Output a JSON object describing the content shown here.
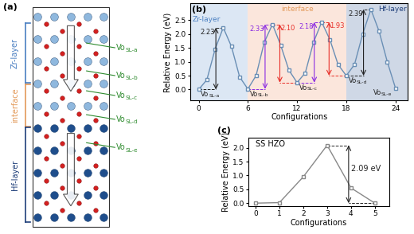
{
  "diagram": {
    "panel_label": "(a)",
    "layers": [
      {
        "label": "Zr-layer",
        "color": "#4a7fc1"
      },
      {
        "label": "interface",
        "color": "#e39a5a"
      },
      {
        "label": "Hf-layer",
        "color": "#1f3f7a"
      }
    ],
    "sites": [
      {
        "main": "Vo",
        "sub": "SL-a"
      },
      {
        "main": "Vo",
        "sub": "SL-b"
      },
      {
        "main": "Vo",
        "sub": "SL-c"
      },
      {
        "main": "Vo",
        "sub": "SL-d"
      },
      {
        "main": "Vo",
        "sub": "SL-e"
      }
    ],
    "site_color": "#2e8b2e"
  },
  "chart_data": [
    {
      "type": "line",
      "title": "(b)",
      "x": [
        0,
        1,
        2,
        3,
        4,
        5,
        6,
        7,
        8,
        9,
        10,
        11,
        12,
        13,
        14,
        15,
        16,
        17,
        18,
        19,
        20,
        21,
        22,
        23,
        24
      ],
      "values": [
        0.0,
        0.35,
        1.45,
        2.23,
        1.55,
        0.45,
        0.02,
        0.5,
        1.7,
        2.35,
        1.6,
        0.7,
        0.25,
        0.6,
        1.7,
        2.43,
        1.8,
        0.9,
        0.5,
        0.9,
        2.0,
        2.89,
        2.1,
        1.0,
        0.05
      ],
      "color": "#6a8fb5",
      "marker": "s",
      "line_style": "solid",
      "xlabel": "Configurations",
      "ylabel": "Relative Energy (eV)",
      "xlim": [
        -1,
        25.5
      ],
      "ylim": [
        -0.4,
        3.1
      ],
      "xticks": [
        0,
        6,
        12,
        18,
        24
      ],
      "yticks": [
        {
          "value": 0,
          "label": "0.0"
        },
        {
          "value": 0.5,
          "label": "0.5"
        },
        {
          "value": 1.0,
          "label": "1.0"
        },
        {
          "value": 1.5,
          "label": "1.5"
        },
        {
          "value": 2.0,
          "label": "2.0"
        },
        {
          "value": 2.5,
          "label": "2.5"
        }
      ],
      "regions": [
        {
          "label": "Zr-layer",
          "start": 0,
          "end": 6,
          "color": "#dce7f4",
          "label_color": "#4a7fc1"
        },
        {
          "label": "interface",
          "start": 6,
          "end": 18,
          "color": "#fbe6dc",
          "label_color": "#e39a5a"
        },
        {
          "label": "Hf-layer",
          "start": 18,
          "end": 24,
          "color": "#cfd8e6",
          "label_color": "#1f3f7a"
        }
      ],
      "barriers": [
        {
          "value": 2.23,
          "label": "2.23",
          "from_config": 0,
          "peak_config": 3,
          "color": "#222222"
        },
        {
          "value": 2.33,
          "label": "2.33",
          "from_config": 6,
          "peak_config": 9,
          "color": "#8a2be2"
        },
        {
          "value": 2.1,
          "label": "2.10",
          "from_config": 12,
          "peak_config": 9,
          "color": "#e8302a"
        },
        {
          "value": 2.18,
          "label": "2.18",
          "from_config": 12,
          "peak_config": 15,
          "color": "#8a2be2"
        },
        {
          "value": 1.93,
          "label": "1.93",
          "from_config": 18,
          "peak_config": 15,
          "color": "#e8302a"
        },
        {
          "value": 2.39,
          "label": "2.39",
          "from_config": 18,
          "peak_config": 21,
          "color": "#222222"
        }
      ],
      "annotations": [
        {
          "x": 0,
          "main": "Vo",
          "sub": "SL-a"
        },
        {
          "x": 6,
          "main": "Vo",
          "sub": "SL-b"
        },
        {
          "x": 12,
          "main": "Vo",
          "sub": "SL-c"
        },
        {
          "x": 18,
          "main": "Vo",
          "sub": "SL-d"
        },
        {
          "x": 24,
          "main": "Vo",
          "sub": "SL-e"
        }
      ]
    },
    {
      "type": "line",
      "title": "(c)",
      "subtitle": "SS HZO",
      "x": [
        0,
        1,
        2,
        3,
        4,
        5
      ],
      "values": [
        0.0,
        0.02,
        0.95,
        2.09,
        0.55,
        0.0
      ],
      "color": "#888888",
      "marker": "s",
      "line_style": "solid",
      "xlabel": "Configurations",
      "ylabel": "Relative Energy (eV)",
      "xlim": [
        -0.3,
        5.6
      ],
      "ylim": [
        -0.1,
        2.35
      ],
      "xticks": [
        0,
        1,
        2,
        3,
        4,
        5
      ],
      "yticks": [
        {
          "value": 0,
          "label": "0.0"
        },
        {
          "value": 0.5,
          "label": "0.5"
        },
        {
          "value": 1.0,
          "label": "1.0"
        },
        {
          "value": 1.5,
          "label": "1.5"
        },
        {
          "value": 2.0,
          "label": "2.0"
        }
      ],
      "barriers": [
        {
          "value": 2.09,
          "label": "2.09 eV",
          "from_config": 5,
          "peak_config": 3,
          "color": "#222222"
        }
      ]
    }
  ]
}
